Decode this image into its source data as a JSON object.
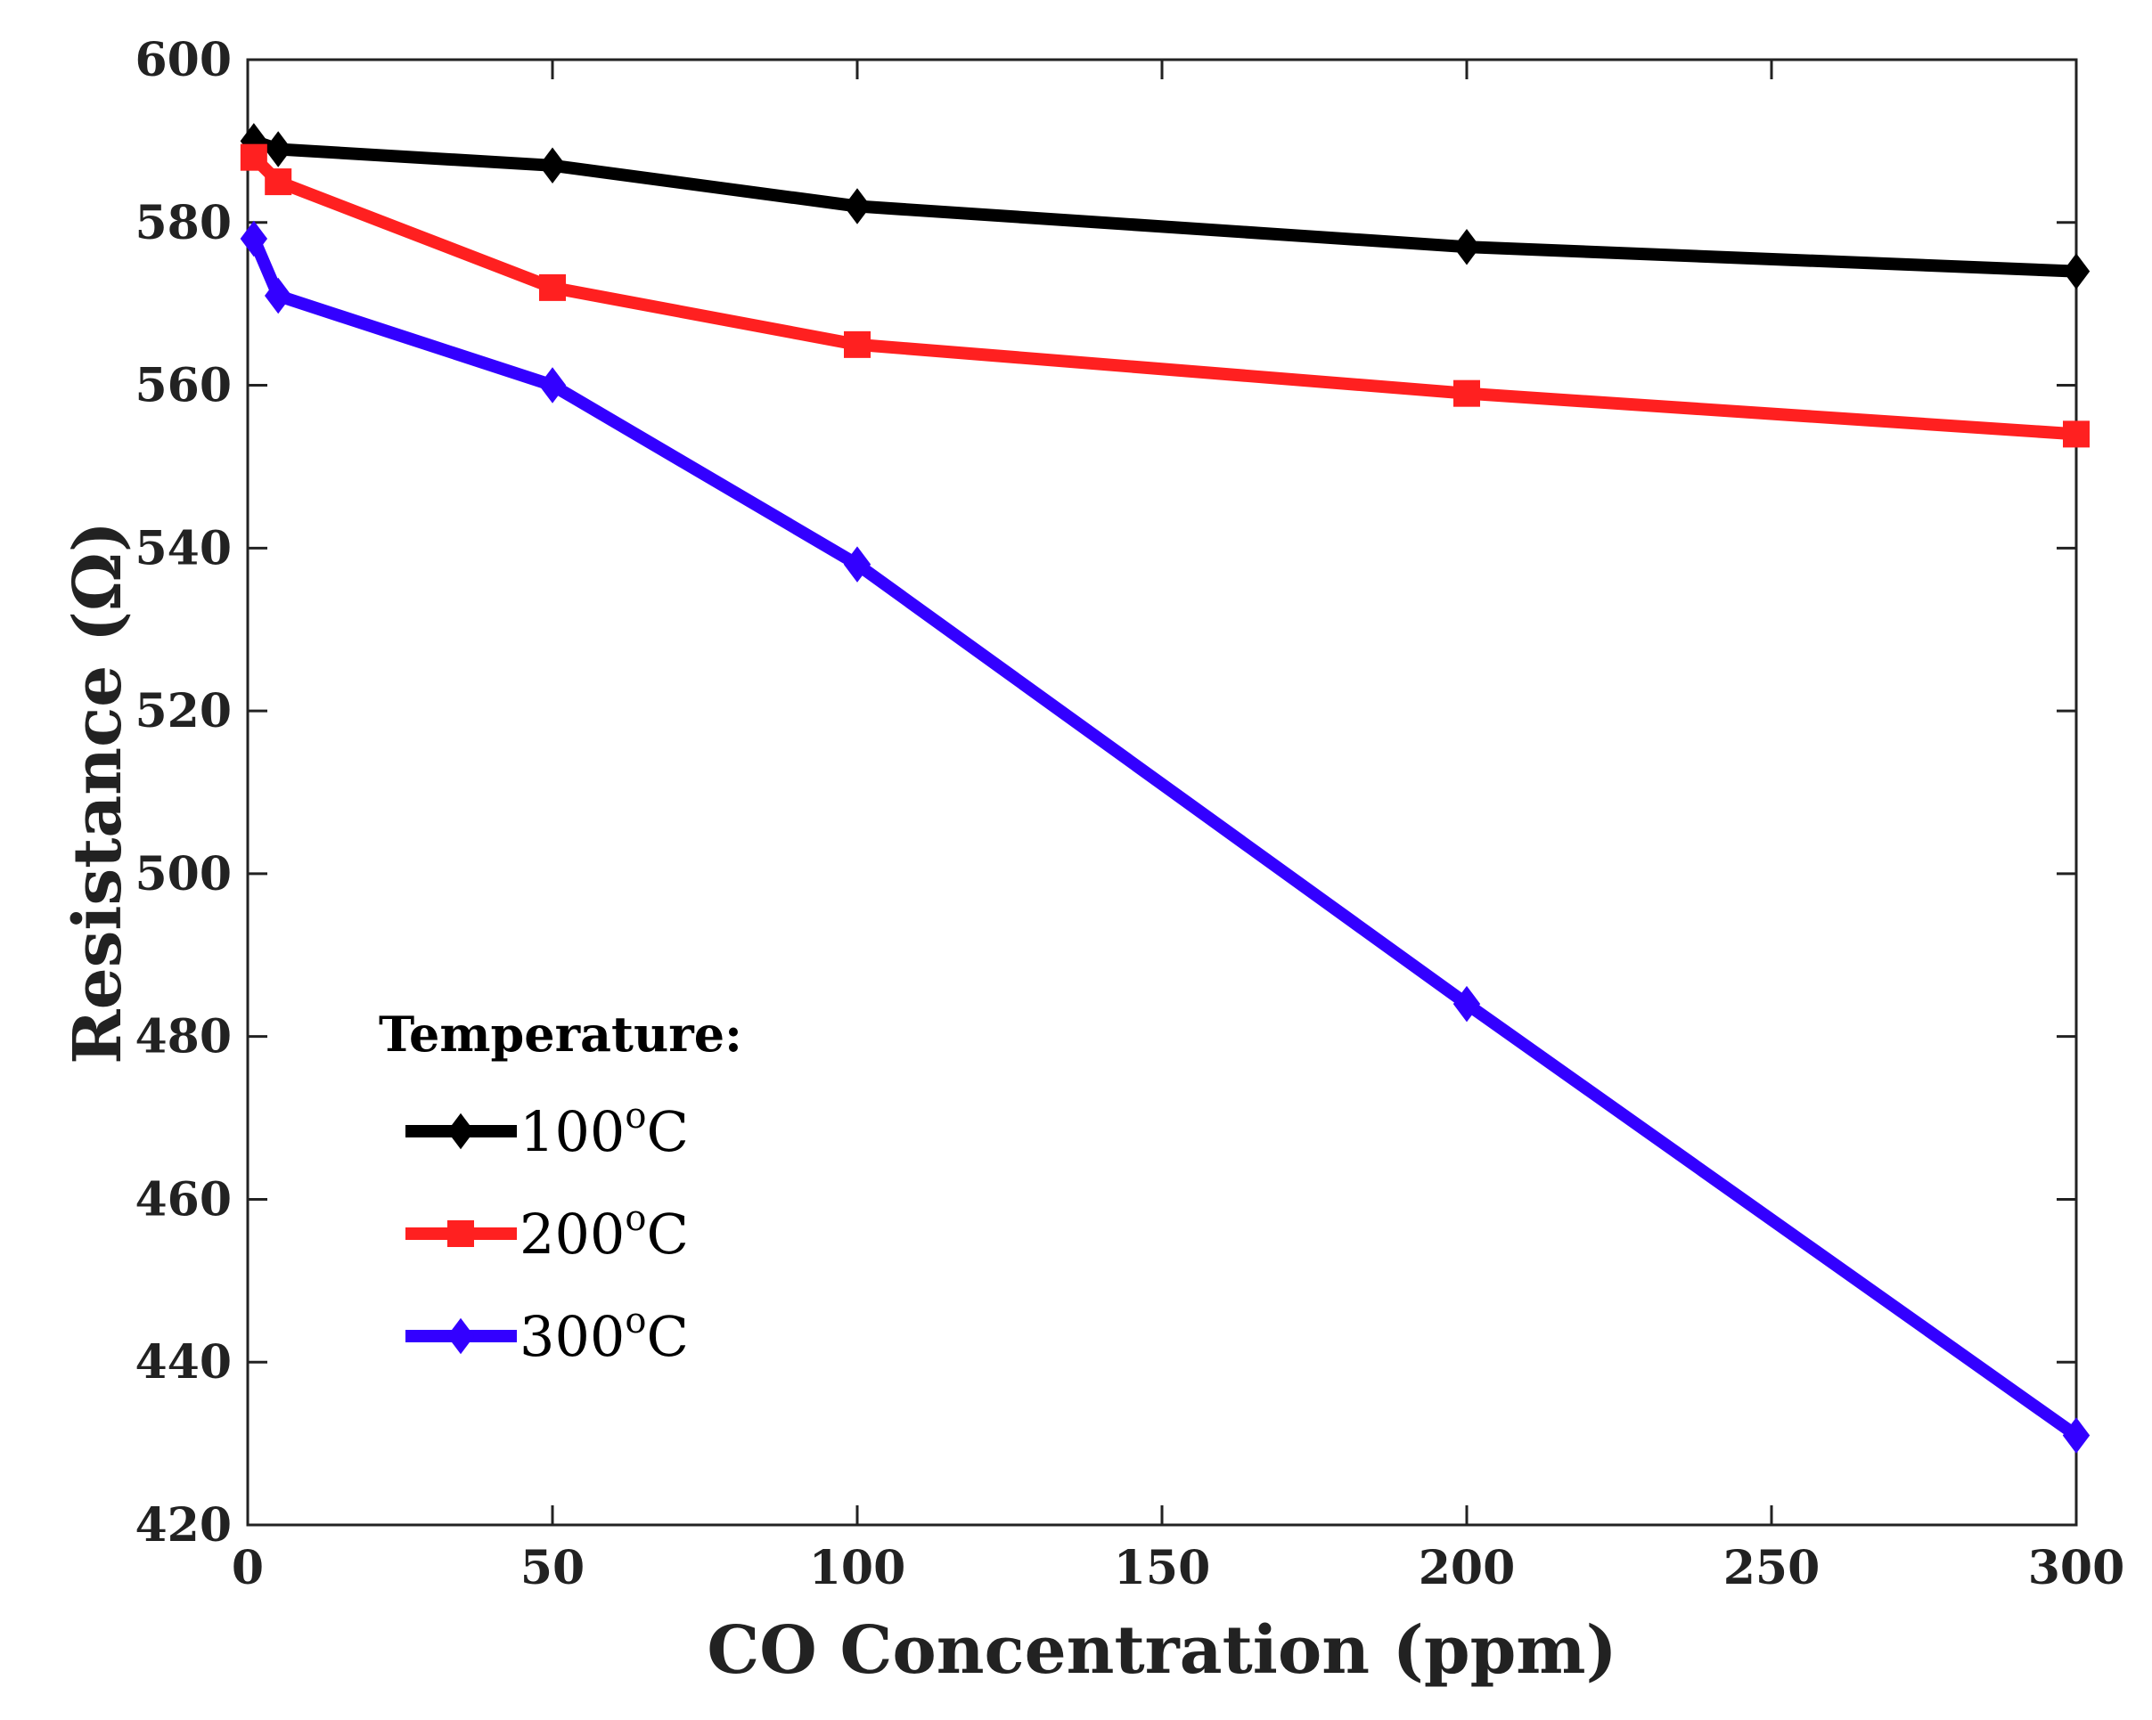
{
  "chart_data": {
    "type": "line",
    "title": "",
    "xlabel": "CO Concentration (ppm)",
    "ylabel": "Resistance (Ω)",
    "xlim": [
      0,
      300
    ],
    "ylim": [
      420,
      600
    ],
    "xticks": [
      0,
      50,
      100,
      150,
      200,
      250,
      300
    ],
    "yticks": [
      420,
      440,
      460,
      480,
      500,
      520,
      540,
      560,
      580,
      600
    ],
    "grid": false,
    "legend": {
      "title": "Temperature:",
      "placement": "lower-left",
      "entries": [
        {
          "base": "100",
          "sup": "o",
          "unit": "C"
        },
        {
          "base": "200",
          "sup": "o",
          "unit": "C"
        },
        {
          "base": "300",
          "sup": "o",
          "unit": "C"
        }
      ]
    },
    "series": [
      {
        "name": "100°C",
        "color": "#000000",
        "marker": "diamond",
        "x": [
          1,
          5,
          50,
          100,
          200,
          300
        ],
        "values": [
          590,
          589,
          587,
          582,
          577,
          574
        ]
      },
      {
        "name": "200°C",
        "color": "#ff2020",
        "marker": "square",
        "x": [
          1,
          5,
          50,
          100,
          200,
          300
        ],
        "values": [
          588,
          585,
          572,
          565,
          559,
          554
        ]
      },
      {
        "name": "300°C",
        "color": "#3300ff",
        "marker": "diamond",
        "x": [
          1,
          5,
          50,
          100,
          200,
          300
        ],
        "values": [
          578,
          571,
          560,
          538,
          484,
          431
        ]
      }
    ]
  }
}
